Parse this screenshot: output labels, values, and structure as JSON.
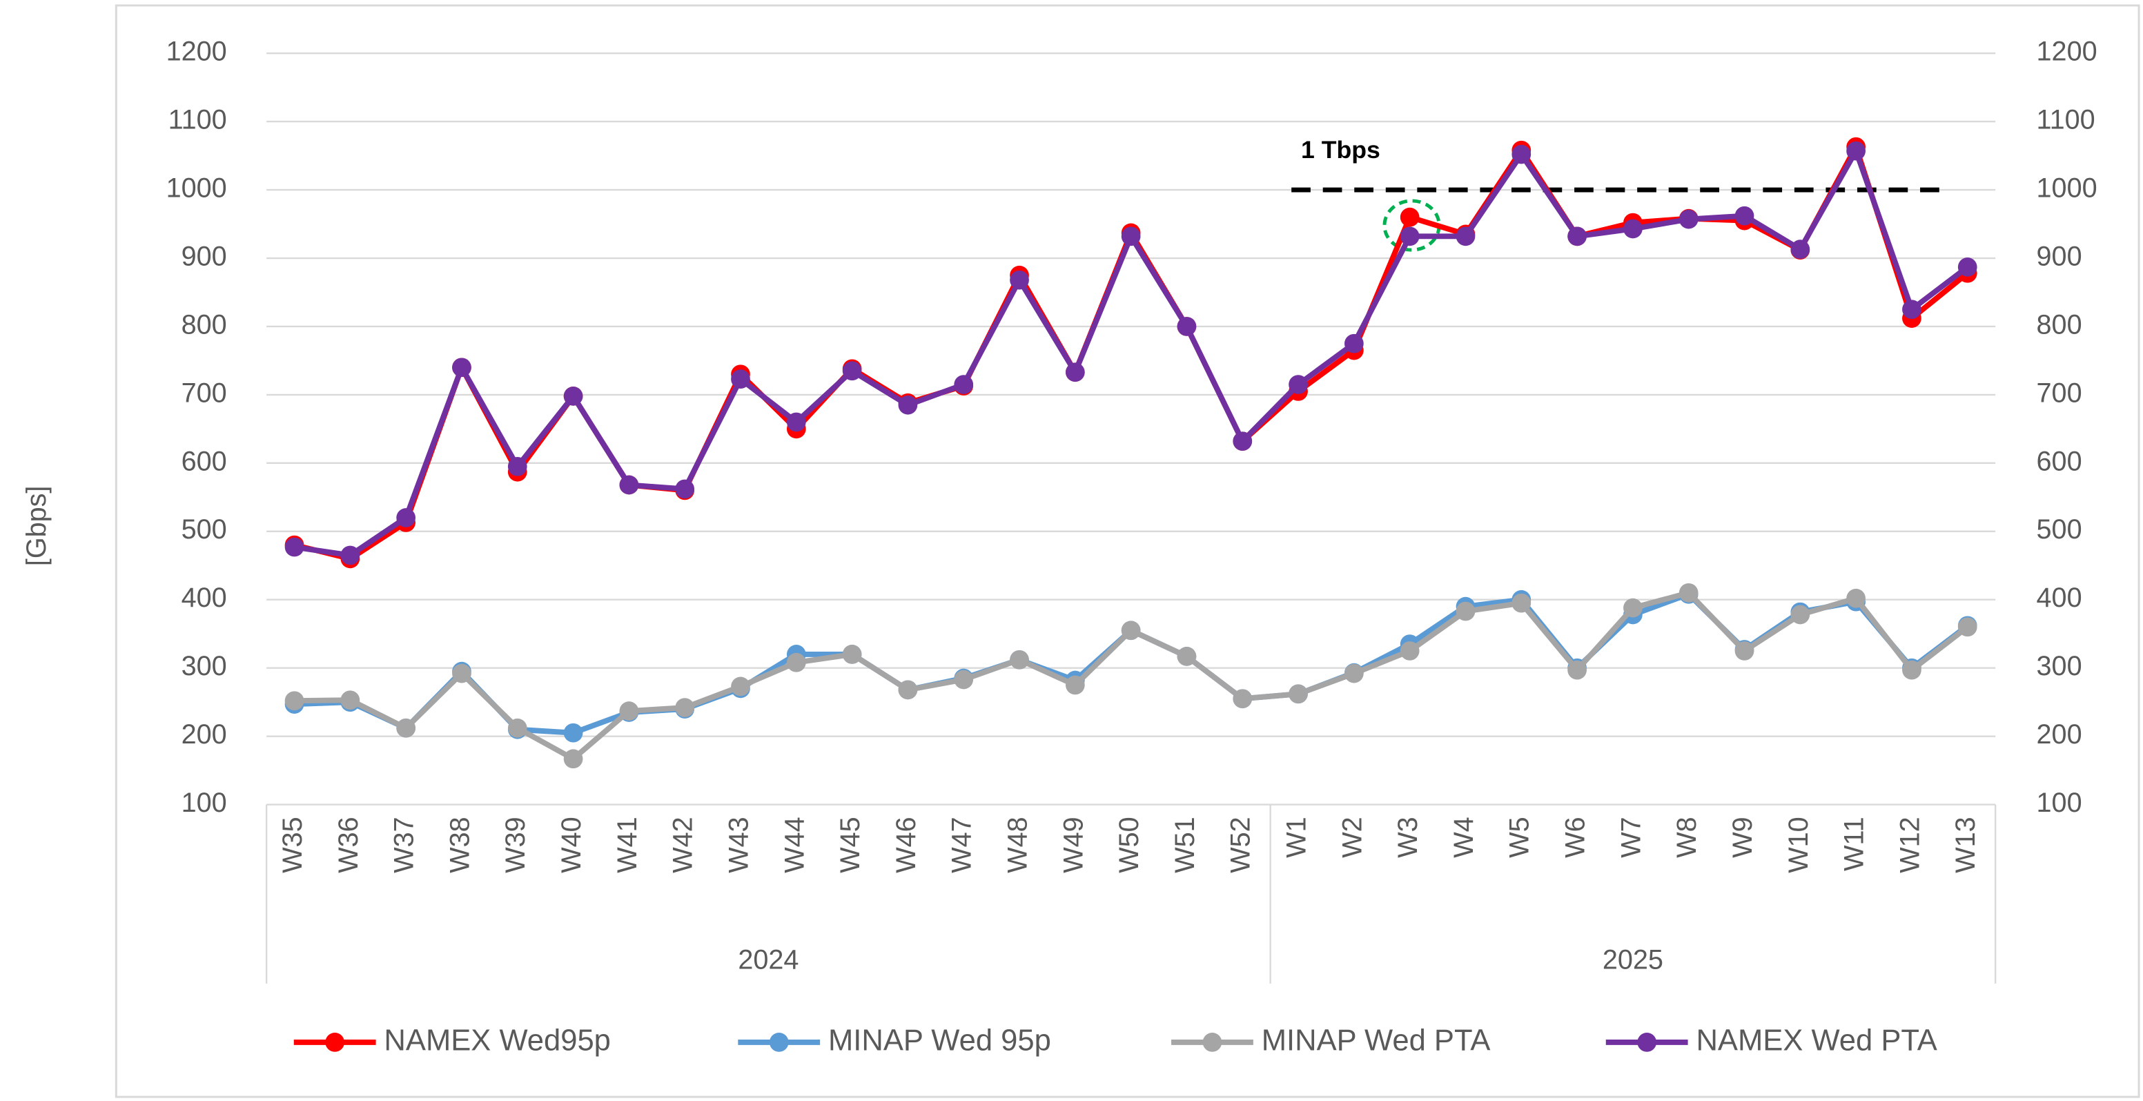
{
  "chart_data": {
    "type": "line",
    "y_label": "[Gbps]",
    "categories": [
      "W35",
      "W36",
      "W37",
      "W38",
      "W39",
      "W40",
      "W41",
      "W42",
      "W43",
      "W44",
      "W45",
      "W46",
      "W47",
      "W48",
      "W49",
      "W50",
      "W51",
      "W52",
      "W1",
      "W2",
      "W3",
      "W4",
      "W5",
      "W6",
      "W7",
      "W8",
      "W9",
      "W10",
      "W11",
      "W12",
      "W13"
    ],
    "x_groups": [
      {
        "label": "2024",
        "count": 18
      },
      {
        "label": "2025",
        "count": 13
      }
    ],
    "series": [
      {
        "name": "NAMEX Wed95p",
        "color": "#ff0000",
        "values": [
          480,
          460,
          513,
          740,
          587,
          698,
          568,
          560,
          730,
          650,
          738,
          688,
          713,
          875,
          733,
          937,
          800,
          632,
          705,
          765,
          960,
          935,
          1058,
          932,
          952,
          958,
          955,
          912,
          1063,
          812,
          878
        ]
      },
      {
        "name": "MINAP Wed 95p",
        "color": "#5b9bd5",
        "values": [
          247,
          250,
          212,
          295,
          210,
          205,
          235,
          240,
          270,
          320,
          320,
          268,
          285,
          312,
          282,
          355,
          317,
          255,
          262,
          293,
          335,
          390,
          400,
          300,
          378,
          408,
          327,
          382,
          397,
          300,
          362
        ]
      },
      {
        "name": "MINAP Wed PTA",
        "color": "#a5a5a5",
        "values": [
          252,
          253,
          212,
          292,
          212,
          167,
          237,
          242,
          273,
          308,
          320,
          268,
          283,
          312,
          275,
          355,
          317,
          255,
          262,
          292,
          325,
          383,
          395,
          297,
          388,
          410,
          325,
          378,
          402,
          297,
          360
        ]
      },
      {
        "name": "NAMEX Wed PTA",
        "color": "#7030a0",
        "values": [
          477,
          465,
          520,
          740,
          595,
          698,
          568,
          562,
          723,
          660,
          735,
          685,
          715,
          868,
          733,
          932,
          800,
          632,
          715,
          775,
          932,
          932,
          1052,
          932,
          943,
          957,
          962,
          913,
          1057,
          825,
          887
        ]
      }
    ],
    "annotation": {
      "text": "1 Tbps",
      "value": 1000,
      "from": "W1",
      "to": "W13"
    },
    "ylim": [
      100,
      1200
    ],
    "yticks": [
      100,
      200,
      300,
      400,
      500,
      600,
      700,
      800,
      900,
      1000,
      1100,
      1200
    ],
    "y2lim": [
      100,
      1200
    ],
    "y2ticks": [
      100,
      200,
      300,
      400,
      500,
      600,
      700,
      800,
      900,
      1000,
      1100,
      1200
    ],
    "grid": true,
    "legend": "bottom"
  }
}
